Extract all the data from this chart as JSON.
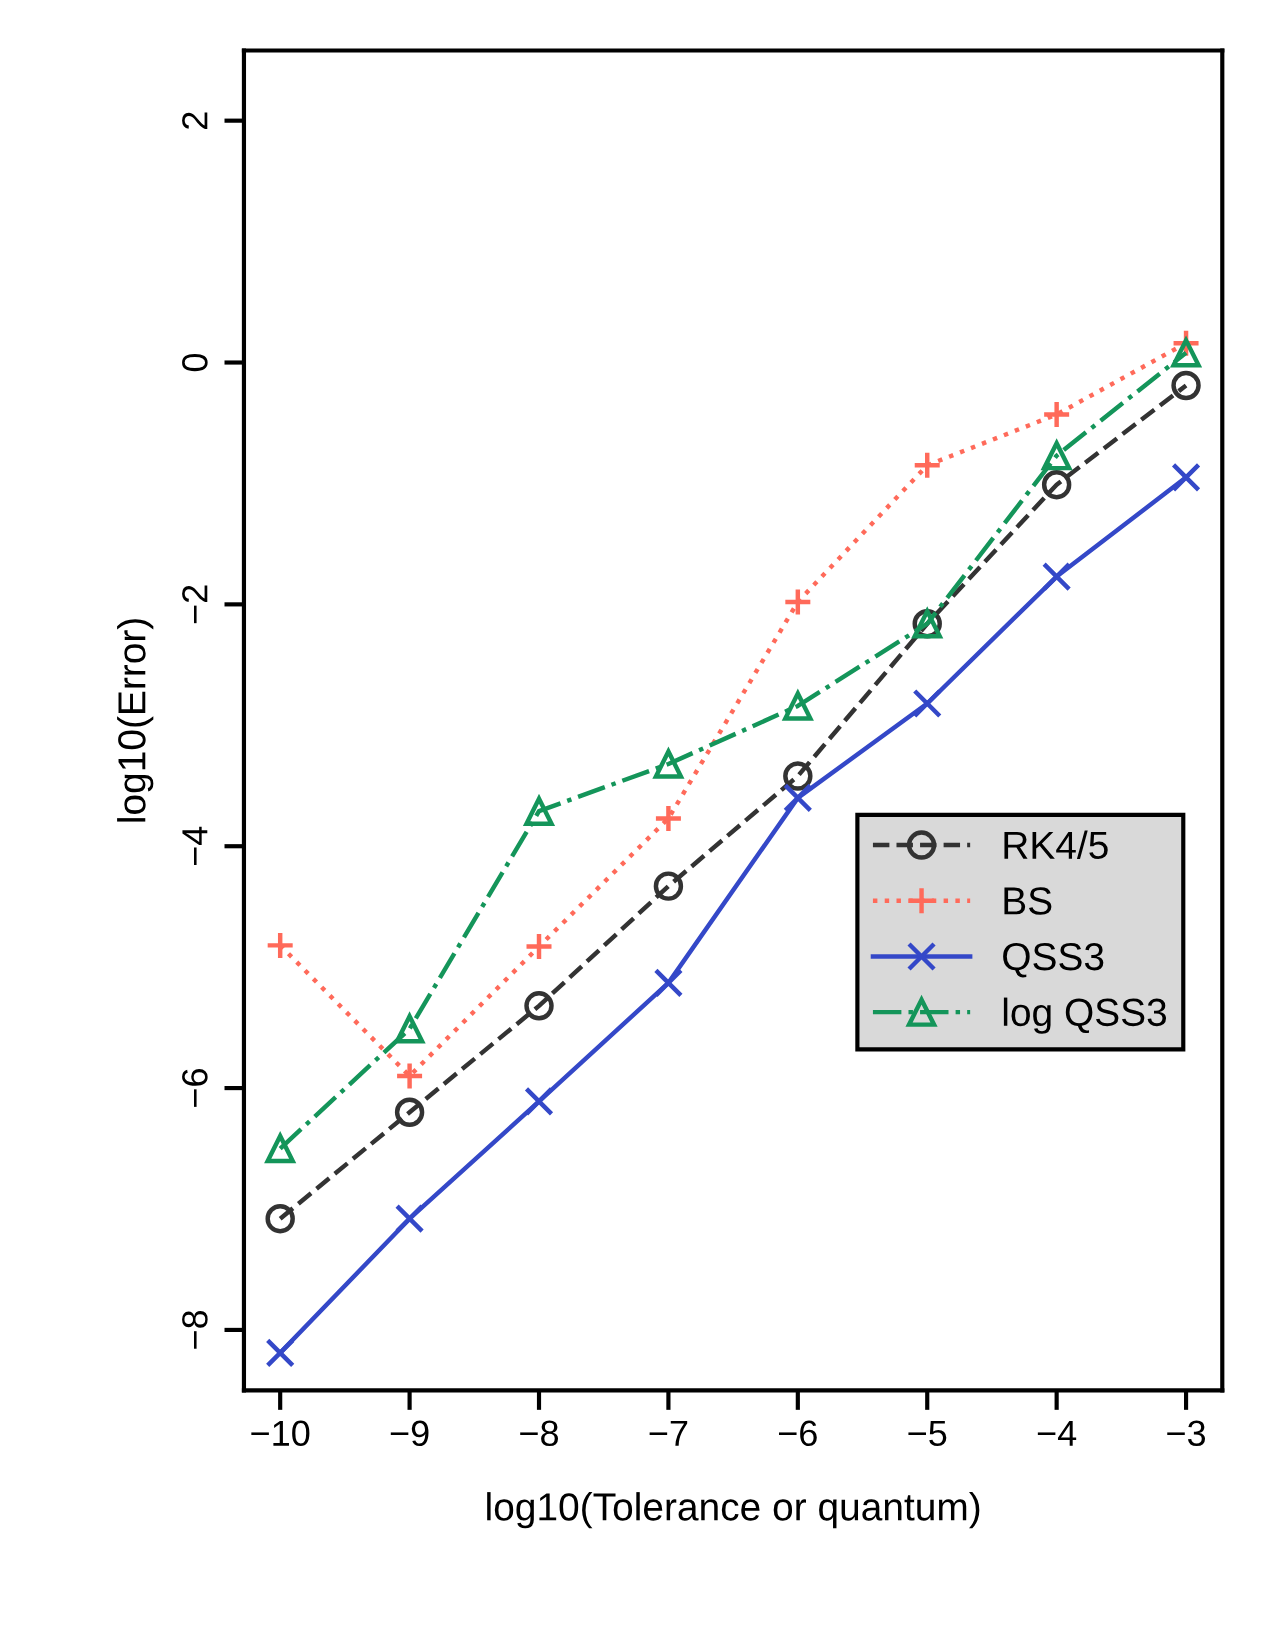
{
  "chart_data": {
    "type": "line",
    "xlabel": "log10(Tolerance or quantum)",
    "ylabel": "log10(Error)",
    "x": [
      -10,
      -9,
      -8,
      -7,
      -6,
      -5,
      -4,
      -3
    ],
    "xlim": [
      -10.28,
      -2.72
    ],
    "xticks": [
      {
        "value": -10,
        "label": "−10"
      },
      {
        "value": -9,
        "label": "−9"
      },
      {
        "value": -8,
        "label": "−8"
      },
      {
        "value": -7,
        "label": "−7"
      },
      {
        "value": -6,
        "label": "−6"
      },
      {
        "value": -5,
        "label": "−5"
      },
      {
        "value": -4,
        "label": "−4"
      },
      {
        "value": -3,
        "label": "−3"
      }
    ],
    "ylim": [
      -8.5,
      2.58
    ],
    "yticks": [
      {
        "value": -8,
        "label": "−8"
      },
      {
        "value": -6,
        "label": "−6"
      },
      {
        "value": -4,
        "label": "−4"
      },
      {
        "value": -2,
        "label": "−2"
      },
      0,
      2
    ],
    "grid": false,
    "legend": "bottom right",
    "series": [
      {
        "name": "RK4/5",
        "color": "#333333",
        "marker": "circle",
        "line_style": "dashed",
        "values": [
          -7.08,
          -6.2,
          -5.32,
          -4.33,
          -3.42,
          -2.16,
          -1.01,
          -0.19
        ]
      },
      {
        "name": "BS",
        "color": "#ff6a5a",
        "marker": "plus",
        "line_style": "dotted",
        "values": [
          -4.82,
          -5.9,
          -4.83,
          -3.77,
          -1.98,
          -0.85,
          -0.43,
          0.16
        ]
      },
      {
        "name": "QSS3",
        "color": "#3448c8",
        "marker": "x",
        "line_style": "solid",
        "values": [
          -8.19,
          -7.08,
          -6.11,
          -5.13,
          -3.6,
          -2.82,
          -1.77,
          -0.95
        ]
      },
      {
        "name": "log QSS3",
        "color": "#14955a",
        "marker": "triangle",
        "line_style": "dashdot",
        "values": [
          -6.5,
          -5.51,
          -3.71,
          -3.32,
          -2.84,
          -2.16,
          -0.77,
          0.08
        ]
      }
    ]
  }
}
